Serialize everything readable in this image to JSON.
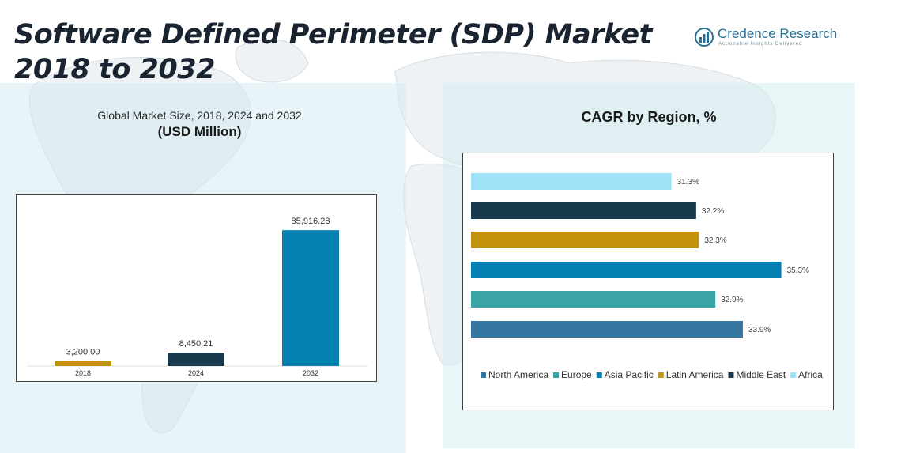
{
  "title": "Software Defined Perimeter (SDP) Market 2018 to 2032",
  "logo": {
    "name": "Credence Research",
    "tagline": "Actionable Insights Delivered"
  },
  "colors": {
    "gold": "#c4930e",
    "dark": "#183a4c",
    "blue": "#0580b3",
    "teal": "#3aa3a6",
    "steel": "#3577a0",
    "light": "#9fe3f9"
  },
  "chart_data": [
    {
      "type": "bar",
      "title": "Global Market Size, 2018, 2024 and 2032",
      "subtitle": "(USD Million)",
      "categories": [
        "2018",
        "2024",
        "2032"
      ],
      "values": [
        3200.0,
        8450.21,
        85916.28
      ],
      "value_labels": [
        "3,200.00",
        "8,450.21",
        "85,916.28"
      ],
      "bar_colors": [
        "#c4930e",
        "#183a4c",
        "#0580b3"
      ],
      "ylim": [
        0,
        100000
      ],
      "xlabel": "",
      "ylabel": ""
    },
    {
      "type": "bar",
      "orientation": "horizontal",
      "title": "CAGR by Region, %",
      "categories": [
        "Africa",
        "Middle East",
        "Latin America",
        "Asia Pacific",
        "Europe",
        "North America"
      ],
      "values": [
        31.3,
        32.2,
        32.3,
        35.3,
        32.9,
        33.9
      ],
      "value_labels": [
        "31.3%",
        "32.2%",
        "32.3%",
        "35.3%",
        "32.9%",
        "33.9%"
      ],
      "bar_colors": [
        "#9fe3f9",
        "#183a4c",
        "#c4930e",
        "#0580b3",
        "#3aa3a6",
        "#3577a0"
      ],
      "xlim": [
        24,
        35.6
      ],
      "legend": [
        {
          "name": "North America",
          "color": "#3577a0"
        },
        {
          "name": "Europe",
          "color": "#3aa3a6"
        },
        {
          "name": "Asia Pacific",
          "color": "#0580b3"
        },
        {
          "name": "Latin America",
          "color": "#c4930e"
        },
        {
          "name": "Middle East",
          "color": "#183a4c"
        },
        {
          "name": "Africa",
          "color": "#9fe3f9"
        }
      ],
      "legend_position": "bottom"
    }
  ]
}
